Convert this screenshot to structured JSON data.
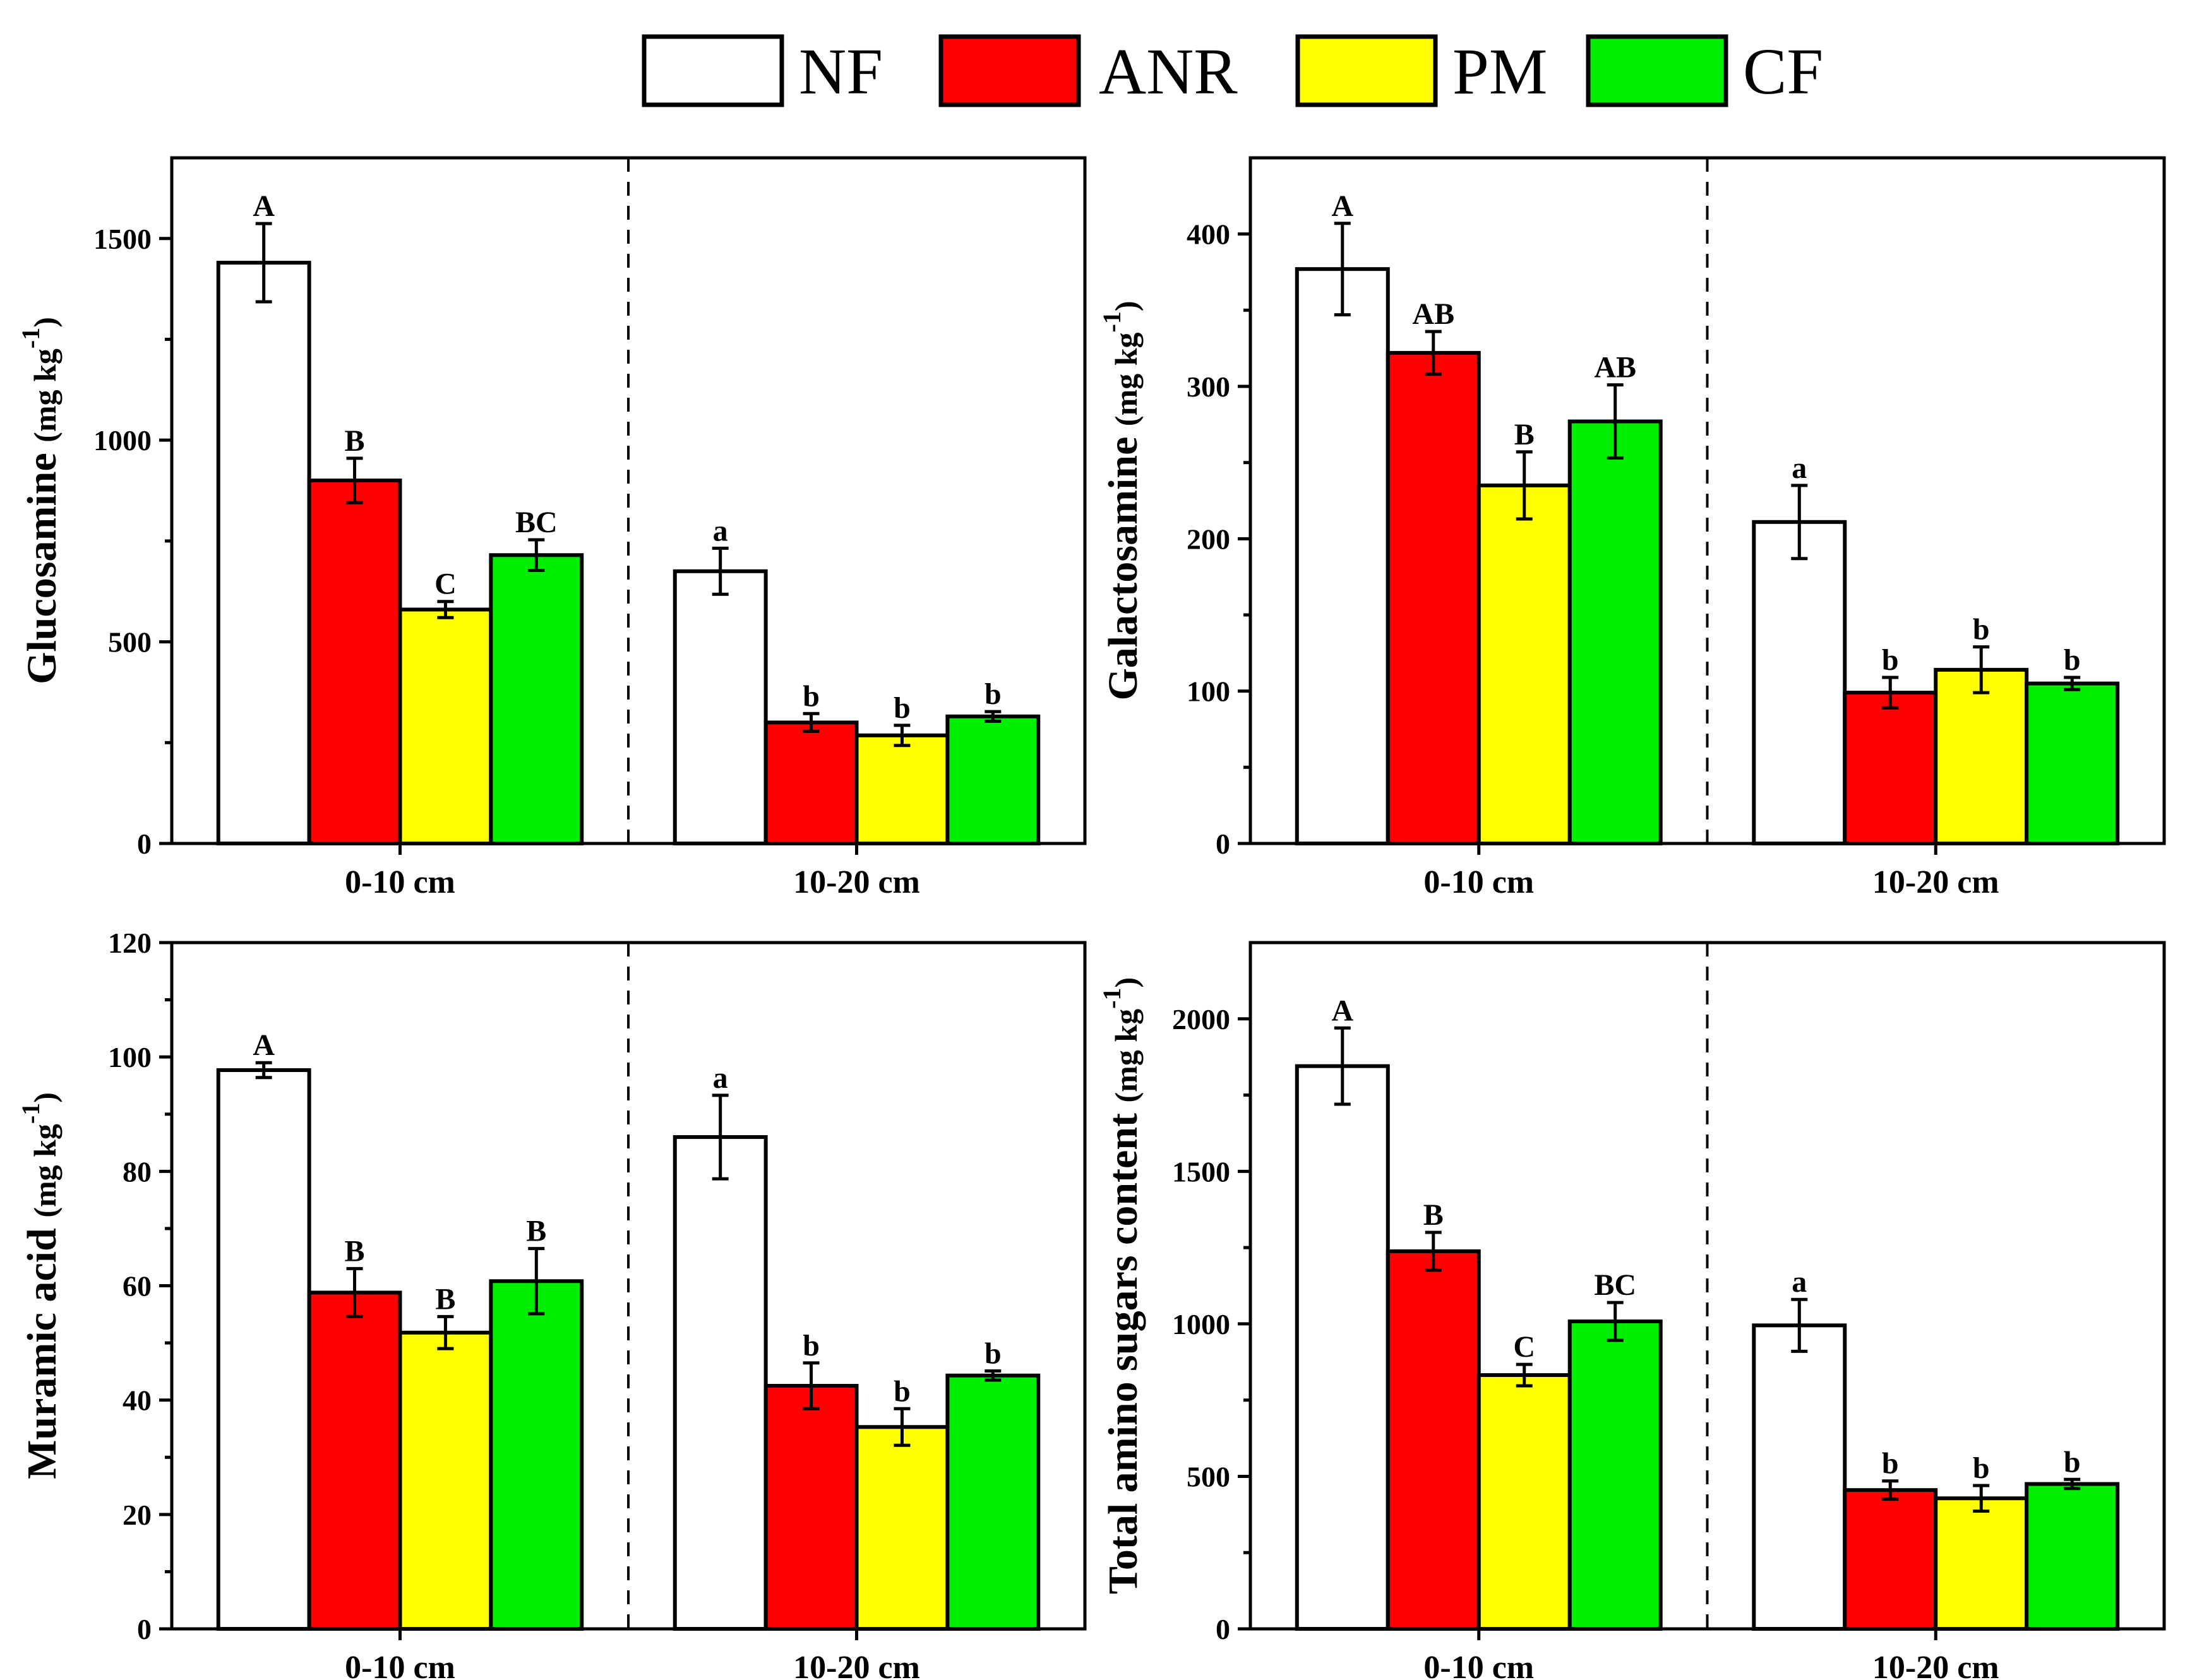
{
  "legend": {
    "items": [
      {
        "name": "NF",
        "color": "#ffffff"
      },
      {
        "name": "ANR",
        "color": "#ff0000"
      },
      {
        "name": "PM",
        "color": "#ffff00"
      },
      {
        "name": "CF",
        "color": "#00ee00"
      }
    ]
  },
  "chart_data": [
    {
      "type": "bar",
      "ylabel_main": "Glucosamine",
      "ylabel_unit": "(mg kg",
      "ylabel_exp": "-1",
      "ylabel_close": ")",
      "categories": [
        "0-10 cm",
        "10-20 cm"
      ],
      "ylim": [
        0,
        1700
      ],
      "yticks": [
        0,
        500,
        1000,
        1500
      ],
      "series": [
        {
          "name": "NF",
          "values": [
            1440,
            675
          ],
          "errors": [
            97,
            57
          ],
          "letters": [
            "A",
            "a"
          ]
        },
        {
          "name": "ANR",
          "values": [
            900,
            300
          ],
          "errors": [
            55,
            22
          ],
          "letters": [
            "B",
            "b"
          ]
        },
        {
          "name": "PM",
          "values": [
            580,
            268
          ],
          "errors": [
            20,
            25
          ],
          "letters": [
            "C",
            "b"
          ]
        },
        {
          "name": "CF",
          "values": [
            715,
            315
          ],
          "errors": [
            38,
            12
          ],
          "letters": [
            "BC",
            "b"
          ]
        }
      ]
    },
    {
      "type": "bar",
      "ylabel_main": "Galactosamine",
      "ylabel_unit": "(mg kg",
      "ylabel_exp": "-1",
      "ylabel_close": ")",
      "categories": [
        "0-10 cm",
        "10-20 cm"
      ],
      "ylim": [
        0,
        450
      ],
      "yticks": [
        0,
        100,
        200,
        300,
        400
      ],
      "series": [
        {
          "name": "NF",
          "values": [
            377,
            211
          ],
          "errors": [
            30,
            24
          ],
          "letters": [
            "A",
            "a"
          ]
        },
        {
          "name": "ANR",
          "values": [
            322,
            99
          ],
          "errors": [
            14,
            10
          ],
          "letters": [
            "AB",
            "b"
          ]
        },
        {
          "name": "PM",
          "values": [
            235,
            114
          ],
          "errors": [
            22,
            15
          ],
          "letters": [
            "B",
            "b"
          ]
        },
        {
          "name": "CF",
          "values": [
            277,
            105
          ],
          "errors": [
            24,
            4
          ],
          "letters": [
            "AB",
            "b"
          ]
        }
      ]
    },
    {
      "type": "bar",
      "ylabel_main": "Muramic acid",
      "ylabel_unit": "(mg kg",
      "ylabel_exp": "-1",
      "ylabel_close": ")",
      "categories": [
        "0-10 cm",
        "10-20 cm"
      ],
      "ylim": [
        0,
        120
      ],
      "yticks": [
        0,
        20,
        40,
        60,
        80,
        100,
        120
      ],
      "series": [
        {
          "name": "NF",
          "values": [
            97.7,
            86
          ],
          "errors": [
            1.3,
            7.3
          ],
          "letters": [
            "A",
            "a"
          ]
        },
        {
          "name": "ANR",
          "values": [
            58.8,
            42.5
          ],
          "errors": [
            4.2,
            4
          ],
          "letters": [
            "B",
            "b"
          ]
        },
        {
          "name": "PM",
          "values": [
            51.8,
            35.3
          ],
          "errors": [
            2.8,
            3.2
          ],
          "letters": [
            "B",
            "b"
          ]
        },
        {
          "name": "CF",
          "values": [
            60.8,
            44.3
          ],
          "errors": [
            5.7,
            0.8
          ],
          "letters": [
            "B",
            "b"
          ]
        }
      ]
    },
    {
      "type": "bar",
      "ylabel_main": "Total amino sugars content",
      "ylabel_unit": "(mg kg",
      "ylabel_exp": "-1",
      "ylabel_close": ")",
      "categories": [
        "0-10 cm",
        "10-20 cm"
      ],
      "ylim": [
        0,
        2250
      ],
      "yticks": [
        0,
        500,
        1000,
        1500,
        2000
      ],
      "series": [
        {
          "name": "NF",
          "values": [
            1845,
            995
          ],
          "errors": [
            125,
            85
          ],
          "letters": [
            "A",
            "a"
          ]
        },
        {
          "name": "ANR",
          "values": [
            1238,
            455
          ],
          "errors": [
            62,
            30
          ],
          "letters": [
            "B",
            "b"
          ]
        },
        {
          "name": "PM",
          "values": [
            832,
            428
          ],
          "errors": [
            35,
            42
          ],
          "letters": [
            "C",
            "b"
          ]
        },
        {
          "name": "CF",
          "values": [
            1008,
            475
          ],
          "errors": [
            62,
            15
          ],
          "letters": [
            "BC",
            "b"
          ]
        }
      ]
    }
  ]
}
